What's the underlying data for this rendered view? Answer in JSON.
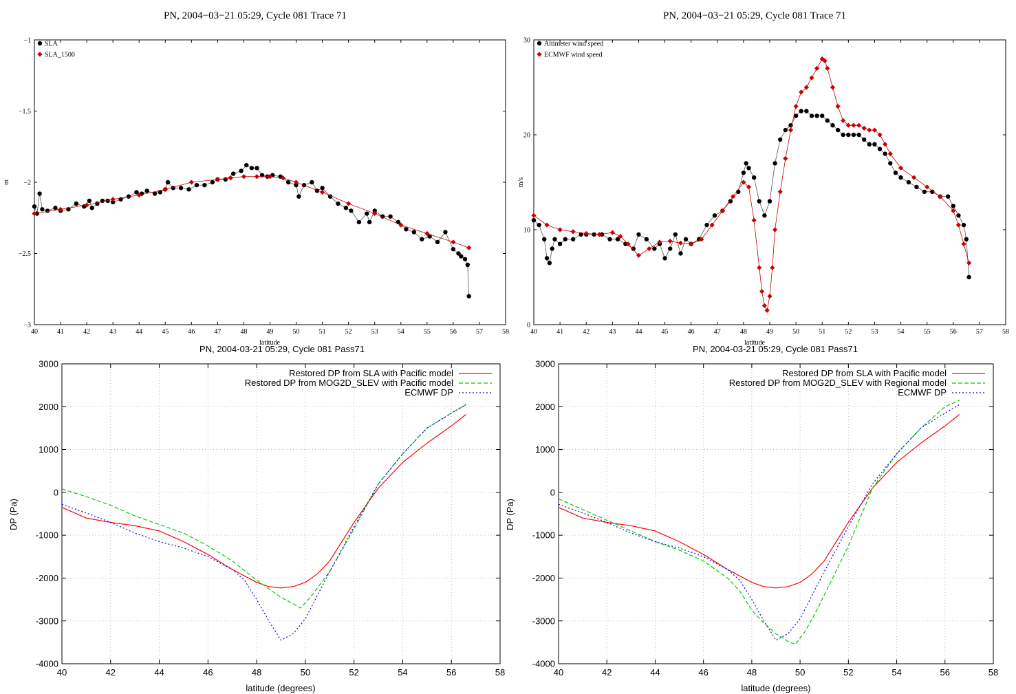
{
  "chart_data": [
    {
      "type": "scatter",
      "title": "PN, 2004−03−21 05:29, Cycle 081 Trace 71",
      "xlabel": "latitude",
      "ylabel": "m",
      "xlim": [
        40,
        58
      ],
      "ylim": [
        -3,
        -1
      ],
      "xticks": [
        40,
        41,
        42,
        43,
        44,
        45,
        46,
        47,
        48,
        49,
        50,
        51,
        52,
        53,
        54,
        55,
        56,
        57,
        58
      ],
      "xtick_labels": [
        "40",
        "41",
        "42",
        "43",
        "44",
        "45",
        "46",
        "47",
        "48",
        "49",
        "50",
        "51",
        "52",
        "53",
        "54",
        "55",
        "56",
        "57",
        "58"
      ],
      "yticks": [
        -3,
        -2.5,
        -2,
        -1.5,
        -1
      ],
      "ytick_labels": [
        "−3",
        "−2.5",
        "−2",
        "−1.5",
        "−1"
      ],
      "grid": false,
      "legend_position": "top-left",
      "series": [
        {
          "name": "SLA",
          "color": "#000000",
          "marker": "circle",
          "connected": true,
          "x": [
            40.0,
            40.1,
            40.2,
            40.3,
            40.5,
            40.8,
            41.0,
            41.3,
            41.6,
            41.9,
            42.1,
            42.2,
            42.4,
            42.6,
            42.8,
            43.0,
            43.3,
            43.6,
            43.9,
            44.1,
            44.3,
            44.6,
            44.8,
            45.0,
            45.1,
            45.3,
            45.6,
            45.9,
            46.2,
            46.5,
            46.8,
            47.0,
            47.3,
            47.6,
            47.9,
            48.1,
            48.3,
            48.5,
            48.7,
            48.9,
            49.1,
            49.4,
            49.7,
            50.0,
            50.1,
            50.3,
            50.6,
            50.8,
            51.0,
            51.3,
            51.6,
            51.9,
            52.1,
            52.4,
            52.7,
            52.8,
            53.0,
            53.3,
            53.6,
            53.9,
            54.2,
            54.5,
            54.8,
            55.1,
            55.4,
            55.7,
            56.0,
            56.2,
            56.3,
            56.45,
            56.55,
            56.6
          ],
          "y": [
            -2.17,
            -2.22,
            -2.08,
            -2.19,
            -2.2,
            -2.18,
            -2.2,
            -2.19,
            -2.15,
            -2.17,
            -2.13,
            -2.18,
            -2.15,
            -2.13,
            -2.13,
            -2.14,
            -2.12,
            -2.1,
            -2.07,
            -2.08,
            -2.06,
            -2.08,
            -2.07,
            -2.05,
            -2.0,
            -2.04,
            -2.04,
            -2.05,
            -2.02,
            -2.02,
            -2.0,
            -1.98,
            -1.98,
            -1.94,
            -1.92,
            -1.88,
            -1.9,
            -1.9,
            -1.95,
            -1.96,
            -1.95,
            -1.96,
            -2.0,
            -2.02,
            -2.1,
            -2.02,
            -2.0,
            -2.06,
            -2.04,
            -2.1,
            -2.15,
            -2.18,
            -2.2,
            -2.28,
            -2.22,
            -2.28,
            -2.2,
            -2.24,
            -2.24,
            -2.28,
            -2.33,
            -2.35,
            -2.4,
            -2.38,
            -2.42,
            -2.35,
            -2.47,
            -2.5,
            -2.52,
            -2.54,
            -2.58,
            -2.8
          ]
        },
        {
          "name": "SLA_1500",
          "color": "#cc0000",
          "marker": "diamond",
          "connected": true,
          "x": [
            40.0,
            41.0,
            42.0,
            43.0,
            44.0,
            45.0,
            46.0,
            47.0,
            47.5,
            48.0,
            48.5,
            49.0,
            49.5,
            50.0,
            51.0,
            52.0,
            53.0,
            54.0,
            55.0,
            56.0,
            56.6
          ],
          "y": [
            -2.22,
            -2.19,
            -2.16,
            -2.12,
            -2.09,
            -2.05,
            -2.0,
            -1.98,
            -1.97,
            -1.96,
            -1.96,
            -1.96,
            -1.97,
            -2.0,
            -2.07,
            -2.15,
            -2.22,
            -2.3,
            -2.36,
            -2.42,
            -2.46
          ]
        }
      ]
    },
    {
      "type": "scatter",
      "title": "PN, 2004−03−21 05:29, Cycle 081 Trace 71",
      "xlabel": "latitude",
      "ylabel": "m/s",
      "xlim": [
        40,
        58
      ],
      "ylim": [
        0,
        30
      ],
      "xticks": [
        40,
        41,
        42,
        43,
        44,
        45,
        46,
        47,
        48,
        49,
        50,
        51,
        52,
        53,
        54,
        55,
        56,
        57,
        58
      ],
      "xtick_labels": [
        "40",
        "41",
        "42",
        "43",
        "44",
        "45",
        "46",
        "47",
        "48",
        "49",
        "50",
        "51",
        "52",
        "53",
        "54",
        "55",
        "56",
        "57",
        "58"
      ],
      "yticks": [
        0,
        10,
        20,
        30
      ],
      "ytick_labels": [
        "0",
        "10",
        "20",
        "30"
      ],
      "grid": false,
      "legend_position": "top-left",
      "series": [
        {
          "name": "Altimeter wind speed",
          "color": "#000000",
          "marker": "circle",
          "connected": true,
          "x": [
            40.0,
            40.2,
            40.4,
            40.5,
            40.6,
            40.7,
            40.8,
            41.0,
            41.2,
            41.5,
            41.8,
            42.0,
            42.3,
            42.6,
            42.9,
            43.2,
            43.5,
            43.8,
            44.0,
            44.3,
            44.6,
            44.8,
            45.0,
            45.2,
            45.4,
            45.6,
            45.8,
            46.0,
            46.3,
            46.6,
            46.9,
            47.2,
            47.5,
            47.8,
            48.0,
            48.1,
            48.2,
            48.4,
            48.6,
            48.8,
            49.0,
            49.2,
            49.4,
            49.6,
            49.8,
            50.0,
            50.2,
            50.4,
            50.6,
            50.8,
            51.0,
            51.2,
            51.4,
            51.6,
            51.8,
            52.0,
            52.2,
            52.4,
            52.6,
            52.8,
            53.0,
            53.2,
            53.4,
            53.6,
            53.8,
            54.0,
            54.3,
            54.6,
            54.9,
            55.2,
            55.5,
            55.8,
            56.0,
            56.2,
            56.4,
            56.5,
            56.6
          ],
          "y": [
            11.0,
            10.5,
            9.0,
            7.0,
            6.5,
            8.0,
            9.0,
            8.5,
            9.0,
            9.0,
            9.5,
            9.5,
            9.5,
            9.5,
            9.0,
            9.0,
            8.5,
            8.0,
            9.5,
            9.0,
            8.0,
            8.5,
            7.0,
            8.0,
            9.5,
            7.5,
            9.0,
            8.5,
            9.0,
            10.5,
            11.5,
            12.0,
            13.0,
            14.0,
            16.0,
            17.0,
            16.5,
            15.5,
            13.0,
            11.5,
            13.0,
            17.0,
            19.5,
            20.5,
            21.0,
            22.0,
            22.5,
            22.5,
            22.0,
            22.0,
            22.0,
            21.5,
            21.0,
            20.5,
            20.0,
            20.0,
            20.0,
            20.0,
            19.5,
            19.0,
            19.0,
            18.5,
            18.0,
            17.0,
            16.0,
            15.5,
            15.0,
            14.5,
            14.0,
            14.0,
            13.5,
            13.5,
            12.5,
            11.5,
            10.5,
            9.0,
            5.0
          ]
        },
        {
          "name": "ECMWF wind speed",
          "color": "#cc0000",
          "marker": "diamond",
          "connected": true,
          "x": [
            40.0,
            40.5,
            41.0,
            41.5,
            42.0,
            42.5,
            43.0,
            43.3,
            43.6,
            44.0,
            44.4,
            44.8,
            45.2,
            45.6,
            46.0,
            46.4,
            46.8,
            47.2,
            47.6,
            48.0,
            48.2,
            48.4,
            48.6,
            48.7,
            48.8,
            48.9,
            49.0,
            49.1,
            49.2,
            49.4,
            49.6,
            49.8,
            50.0,
            50.2,
            50.4,
            50.6,
            50.8,
            51.0,
            51.1,
            51.2,
            51.4,
            51.6,
            51.8,
            52.0,
            52.2,
            52.4,
            52.6,
            52.8,
            53.0,
            53.2,
            53.4,
            53.6,
            54.0,
            54.5,
            55.0,
            55.5,
            56.0,
            56.2,
            56.4,
            56.6
          ],
          "y": [
            11.5,
            10.5,
            10.0,
            9.8,
            9.6,
            9.5,
            9.7,
            9.3,
            8.5,
            7.3,
            8.0,
            8.7,
            8.8,
            8.6,
            8.5,
            9.0,
            10.5,
            12.0,
            13.5,
            15.0,
            14.5,
            11.0,
            6.0,
            3.5,
            2.0,
            1.5,
            3.0,
            6.0,
            10.0,
            14.0,
            17.5,
            20.5,
            23.0,
            24.5,
            25.0,
            26.0,
            27.0,
            28.0,
            27.8,
            27.0,
            25.0,
            23.0,
            21.5,
            21.0,
            21.0,
            21.0,
            20.7,
            20.5,
            20.5,
            20.0,
            19.0,
            18.0,
            16.5,
            15.5,
            14.5,
            13.5,
            12.0,
            10.5,
            8.5,
            6.5
          ]
        }
      ]
    },
    {
      "type": "line",
      "title": "PN, 2004-03-21 05:29, Cycle 081 Pass71",
      "xlabel": "latitude (degrees)",
      "ylabel": "DP (Pa)",
      "xlim": [
        40,
        58
      ],
      "ylim": [
        -4000,
        3000
      ],
      "xticks": [
        40,
        42,
        44,
        46,
        48,
        50,
        52,
        54,
        56,
        58
      ],
      "xtick_labels": [
        "40",
        "42",
        "44",
        "46",
        "48",
        "50",
        "52",
        "54",
        "56",
        "58"
      ],
      "yticks": [
        -4000,
        -3000,
        -2000,
        -1000,
        0,
        1000,
        2000,
        3000
      ],
      "ytick_labels": [
        "-4000",
        "-3000",
        "-2000",
        "-1000",
        "0",
        "1000",
        "2000",
        "3000"
      ],
      "grid": true,
      "legend_position": "top-right",
      "series": [
        {
          "name": "Restored DP from SLA with Pacific model",
          "color": "#ff0000",
          "dash": "solid",
          "x": [
            40.0,
            41.0,
            42.0,
            43.0,
            44.0,
            45.0,
            46.0,
            47.0,
            48.0,
            48.5,
            49.0,
            49.5,
            50.0,
            50.5,
            51.0,
            52.0,
            53.0,
            54.0,
            55.0,
            56.0,
            56.6
          ],
          "y": [
            -350,
            -600,
            -700,
            -780,
            -900,
            -1150,
            -1450,
            -1800,
            -2100,
            -2200,
            -2230,
            -2200,
            -2100,
            -1900,
            -1600,
            -700,
            100,
            700,
            1150,
            1550,
            1820
          ]
        },
        {
          "name": "Restored DP from MOG2D_SLEV with Pacific model",
          "color": "#00cc00",
          "dash": "dashed",
          "x": [
            40.0,
            41.0,
            42.0,
            43.0,
            44.0,
            45.0,
            46.0,
            47.0,
            48.0,
            48.5,
            49.0,
            49.5,
            49.8,
            50.2,
            50.6,
            51.0,
            52.0,
            53.0,
            54.0,
            55.0,
            56.0,
            56.6
          ],
          "y": [
            80,
            -100,
            -300,
            -550,
            -750,
            -950,
            -1250,
            -1600,
            -2050,
            -2250,
            -2450,
            -2600,
            -2700,
            -2450,
            -2150,
            -1850,
            -850,
            200,
            900,
            1500,
            1850,
            2050
          ]
        },
        {
          "name": "ECMWF DP",
          "color": "#0000ff",
          "dash": "dotted",
          "x": [
            40.0,
            41.0,
            42.0,
            43.0,
            44.0,
            45.0,
            46.0,
            47.0,
            47.5,
            48.0,
            48.5,
            49.0,
            49.5,
            50.0,
            50.5,
            51.0,
            52.0,
            53.0,
            54.0,
            55.0,
            56.0,
            56.6
          ],
          "y": [
            -280,
            -480,
            -700,
            -950,
            -1150,
            -1300,
            -1500,
            -1800,
            -2050,
            -2500,
            -3000,
            -3450,
            -3300,
            -2950,
            -2400,
            -1850,
            -800,
            200,
            900,
            1500,
            1850,
            2050
          ]
        }
      ]
    },
    {
      "type": "line",
      "title": "PN, 2004-03-21 05:29, Cycle 081 Pass71",
      "xlabel": "latitude (degrees)",
      "ylabel": "DP (Pa)",
      "xlim": [
        40,
        58
      ],
      "ylim": [
        -4000,
        3000
      ],
      "xticks": [
        40,
        42,
        44,
        46,
        48,
        50,
        52,
        54,
        56,
        58
      ],
      "xtick_labels": [
        "40",
        "42",
        "44",
        "46",
        "48",
        "50",
        "52",
        "54",
        "56",
        "58"
      ],
      "yticks": [
        -4000,
        -3000,
        -2000,
        -1000,
        0,
        1000,
        2000,
        3000
      ],
      "ytick_labels": [
        "-4000",
        "-3000",
        "-2000",
        "-1000",
        "0",
        "1000",
        "2000",
        "3000"
      ],
      "grid": true,
      "legend_position": "top-right",
      "series": [
        {
          "name": "Restored DP from SLA with Pacific model",
          "color": "#ff0000",
          "dash": "solid",
          "x": [
            40.0,
            41.0,
            42.0,
            43.0,
            44.0,
            45.0,
            46.0,
            47.0,
            48.0,
            48.5,
            49.0,
            49.5,
            50.0,
            50.5,
            51.0,
            52.0,
            53.0,
            54.0,
            55.0,
            56.0,
            56.6
          ],
          "y": [
            -350,
            -600,
            -700,
            -780,
            -900,
            -1150,
            -1450,
            -1800,
            -2100,
            -2200,
            -2230,
            -2200,
            -2100,
            -1900,
            -1600,
            -700,
            100,
            700,
            1150,
            1550,
            1820
          ]
        },
        {
          "name": "Restored DP from MOG2D_SLEV with Regional model",
          "color": "#00cc00",
          "dash": "dashed",
          "x": [
            40.0,
            41.0,
            42.0,
            43.0,
            44.0,
            45.0,
            46.0,
            47.0,
            47.5,
            48.0,
            48.5,
            49.0,
            49.5,
            49.8,
            50.2,
            50.6,
            51.0,
            52.0,
            53.0,
            54.0,
            55.0,
            56.0,
            56.6
          ],
          "y": [
            -150,
            -400,
            -650,
            -900,
            -1150,
            -1350,
            -1600,
            -2000,
            -2300,
            -2750,
            -3050,
            -3300,
            -3480,
            -3550,
            -3250,
            -2850,
            -2400,
            -1250,
            100,
            900,
            1500,
            2000,
            2150
          ]
        },
        {
          "name": "ECMWF DP",
          "color": "#0000ff",
          "dash": "dotted",
          "x": [
            40.0,
            41.0,
            42.0,
            43.0,
            44.0,
            45.0,
            46.0,
            47.0,
            47.5,
            48.0,
            48.5,
            49.0,
            49.5,
            50.0,
            50.5,
            51.0,
            52.0,
            53.0,
            54.0,
            55.0,
            56.0,
            56.6
          ],
          "y": [
            -280,
            -480,
            -700,
            -950,
            -1150,
            -1300,
            -1500,
            -1800,
            -2050,
            -2500,
            -3000,
            -3450,
            -3300,
            -2950,
            -2400,
            -1850,
            -800,
            200,
            900,
            1500,
            1850,
            2050
          ]
        }
      ]
    }
  ]
}
